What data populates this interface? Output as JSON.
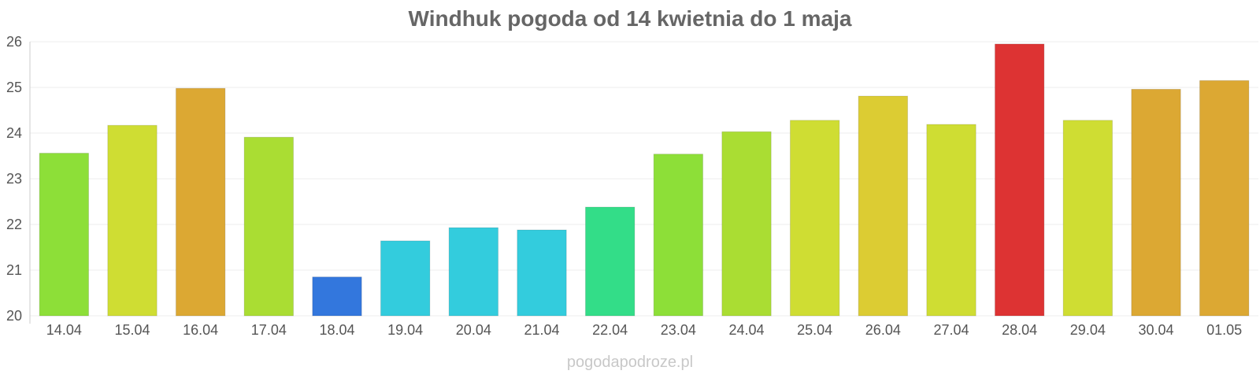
{
  "watermark": "pogodapodroze.pl",
  "chart_data": {
    "type": "bar",
    "title": "Windhuk pogoda od 14 kwietnia do 1 maja",
    "xlabel": "",
    "ylabel": "",
    "ylim": [
      20,
      26
    ],
    "yticks": [
      "20",
      "21",
      "22",
      "23",
      "24",
      "25",
      "26"
    ],
    "grid": true,
    "categories": [
      "14.04",
      "15.04",
      "16.04",
      "17.04",
      "18.04",
      "19.04",
      "20.04",
      "21.04",
      "22.04",
      "23.04",
      "24.04",
      "25.04",
      "26.04",
      "27.04",
      "28.04",
      "29.04",
      "30.04",
      "01.05"
    ],
    "values": [
      23.56,
      24.17,
      24.98,
      23.91,
      20.85,
      21.64,
      21.93,
      21.88,
      22.38,
      23.54,
      24.03,
      24.28,
      24.81,
      24.19,
      25.95,
      24.28,
      24.96,
      25.15
    ],
    "colors": [
      "#8ddf38",
      "#cfdd33",
      "#dca833",
      "#aadd33",
      "#3377dd",
      "#33ccdd",
      "#33ccdd",
      "#33ccdd",
      "#33dd88",
      "#8ddf38",
      "#aadd33",
      "#cfdd33",
      "#dccc33",
      "#cfdd33",
      "#dd3333",
      "#cfdd33",
      "#dca833",
      "#dca833"
    ]
  }
}
